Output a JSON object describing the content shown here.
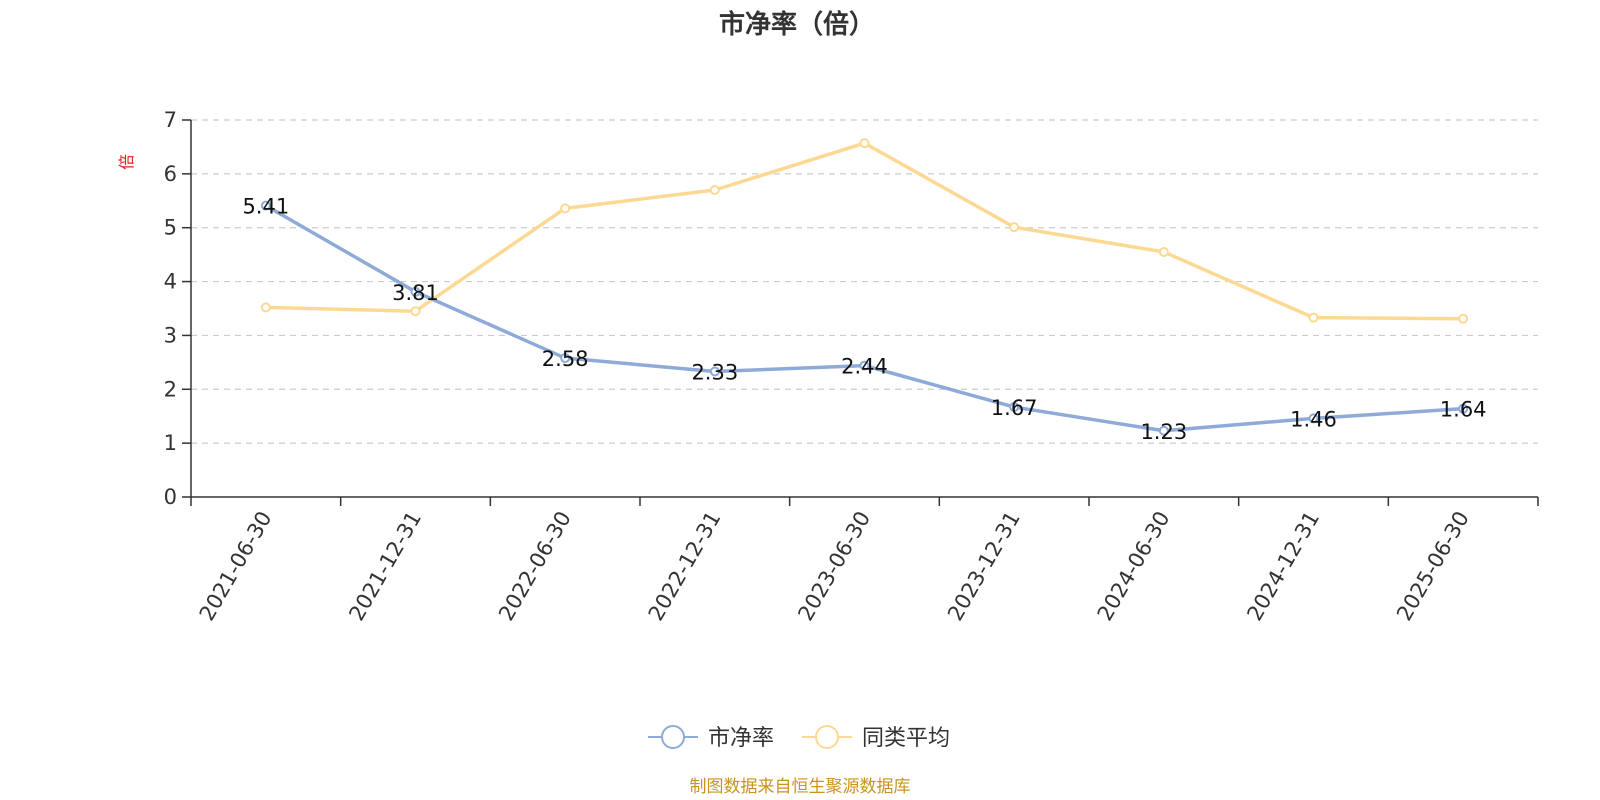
{
  "chart_data": {
    "type": "line",
    "title": "市净率（倍）",
    "ylabel": "倍",
    "xlabel": "",
    "ylim": [
      0,
      7
    ],
    "yticks": [
      0,
      1,
      2,
      3,
      4,
      5,
      6,
      7
    ],
    "grid": "horizontal-dashed",
    "legend_position": "bottom-center",
    "categories": [
      "2021-06-30",
      "2021-12-31",
      "2022-06-30",
      "2022-12-31",
      "2023-06-30",
      "2023-12-31",
      "2024-06-30",
      "2024-12-31",
      "2025-06-30"
    ],
    "series": [
      {
        "name": "市净率",
        "color": "#8eaad8",
        "values": [
          5.41,
          3.81,
          2.58,
          2.33,
          2.44,
          1.67,
          1.23,
          1.46,
          1.64
        ],
        "data_labels": [
          "5.41",
          "3.81",
          "2.58",
          "2.33",
          "2.44",
          "1.67",
          "1.23",
          "1.46",
          "1.64"
        ]
      },
      {
        "name": "同类平均",
        "color": "#fcd993",
        "values": [
          3.52,
          3.45,
          5.36,
          5.7,
          6.57,
          5.01,
          4.55,
          3.33,
          3.31
        ]
      }
    ],
    "source": "制图数据来自恒生聚源数据库"
  }
}
